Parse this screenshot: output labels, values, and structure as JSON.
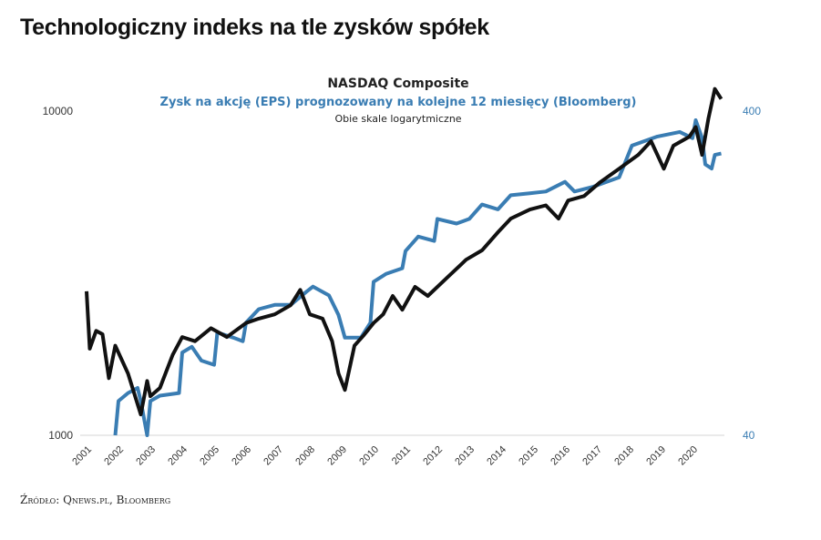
{
  "title": "Technologiczny indeks na tle zysków spółek",
  "source": "Źródło: Qnews.pl, Bloomberg",
  "chart_data": {
    "type": "line",
    "header": {
      "line1": "NASDAQ Composite",
      "line2": "Zysk na akcję (EPS) prognozowany na kolejne 12 miesięcy (Bloomberg)",
      "line3": "Obie skale logarytmiczne"
    },
    "x_ticks": [
      "2001",
      "2002",
      "2003",
      "2004",
      "2005",
      "2006",
      "2007",
      "2008",
      "2009",
      "2010",
      "2011",
      "2012",
      "2013",
      "2014",
      "2015",
      "2016",
      "2017",
      "2018",
      "2019",
      "2020"
    ],
    "y_left": {
      "scale": "log",
      "range": [
        1000,
        10000
      ],
      "ticks": [
        "1000",
        "10000"
      ]
    },
    "y_right": {
      "scale": "log",
      "range": [
        40,
        400
      ],
      "ticks": [
        "40",
        "400"
      ],
      "color": "#3a7db3"
    },
    "grid": false,
    "series": [
      {
        "name": "NASDAQ Composite",
        "axis": "left",
        "color": "#111111",
        "x": [
          2001.0,
          2001.1,
          2001.3,
          2001.5,
          2001.7,
          2001.9,
          2002.3,
          2002.7,
          2002.9,
          2003.0,
          2003.3,
          2003.7,
          2004.0,
          2004.4,
          2004.9,
          2005.4,
          2006.0,
          2006.4,
          2006.9,
          2007.4,
          2007.7,
          2008.0,
          2008.4,
          2008.7,
          2008.9,
          2009.1,
          2009.4,
          2009.7,
          2010.0,
          2010.3,
          2010.6,
          2010.9,
          2011.3,
          2011.7,
          2012.3,
          2012.9,
          2013.4,
          2013.9,
          2014.3,
          2014.9,
          2015.4,
          2015.8,
          2016.1,
          2016.6,
          2017.1,
          2017.7,
          2018.3,
          2018.7,
          2019.1,
          2019.4,
          2019.9,
          2020.1,
          2020.3,
          2020.5,
          2020.7,
          2020.9
        ],
        "y": [
          2780,
          1850,
          2100,
          2050,
          1500,
          1890,
          1550,
          1160,
          1470,
          1320,
          1400,
          1770,
          2010,
          1950,
          2140,
          2010,
          2220,
          2290,
          2360,
          2520,
          2810,
          2360,
          2290,
          1950,
          1550,
          1380,
          1890,
          2040,
          2220,
          2360,
          2690,
          2440,
          2870,
          2690,
          3060,
          3480,
          3720,
          4230,
          4660,
          4970,
          5120,
          4660,
          5300,
          5470,
          6030,
          6640,
          7330,
          8080,
          6640,
          7820,
          8340,
          8930,
          7330,
          9500,
          11700,
          10900
        ]
      },
      {
        "name": "Zysk na akcję (EPS) prognozowany na kolejne 12 miesięcy (Bloomberg)",
        "axis": "right",
        "color": "#3a7db3",
        "x": [
          2001.9,
          2002.0,
          2002.3,
          2002.6,
          2002.7,
          2002.9,
          2003.0,
          2003.3,
          2003.9,
          2004.0,
          2004.3,
          2004.6,
          2005.0,
          2005.1,
          2005.6,
          2005.9,
          2006.0,
          2006.4,
          2006.9,
          2007.4,
          2007.9,
          2008.1,
          2008.6,
          2008.9,
          2009.1,
          2009.6,
          2009.9,
          2010.0,
          2010.4,
          2010.9,
          2011.0,
          2011.4,
          2011.9,
          2012.0,
          2012.6,
          2013.0,
          2013.4,
          2013.9,
          2014.3,
          2014.9,
          2015.4,
          2016.0,
          2016.3,
          2016.9,
          2017.7,
          2018.1,
          2018.9,
          2019.6,
          2020.0,
          2020.1,
          2020.3,
          2020.4,
          2020.6,
          2020.7,
          2020.9
        ],
        "y": [
          40,
          51,
          54,
          56,
          51,
          40,
          51,
          53,
          54,
          72,
          75,
          68,
          66,
          83,
          80,
          78,
          89,
          98,
          101,
          101,
          111,
          115,
          108,
          94,
          80,
          80,
          89,
          119,
          126,
          131,
          148,
          164,
          159,
          186,
          180,
          186,
          206,
          199,
          220,
          223,
          226,
          242,
          226,
          234,
          250,
          313,
          334,
          345,
          330,
          375,
          330,
          274,
          266,
          293,
          296
        ]
      }
    ]
  }
}
